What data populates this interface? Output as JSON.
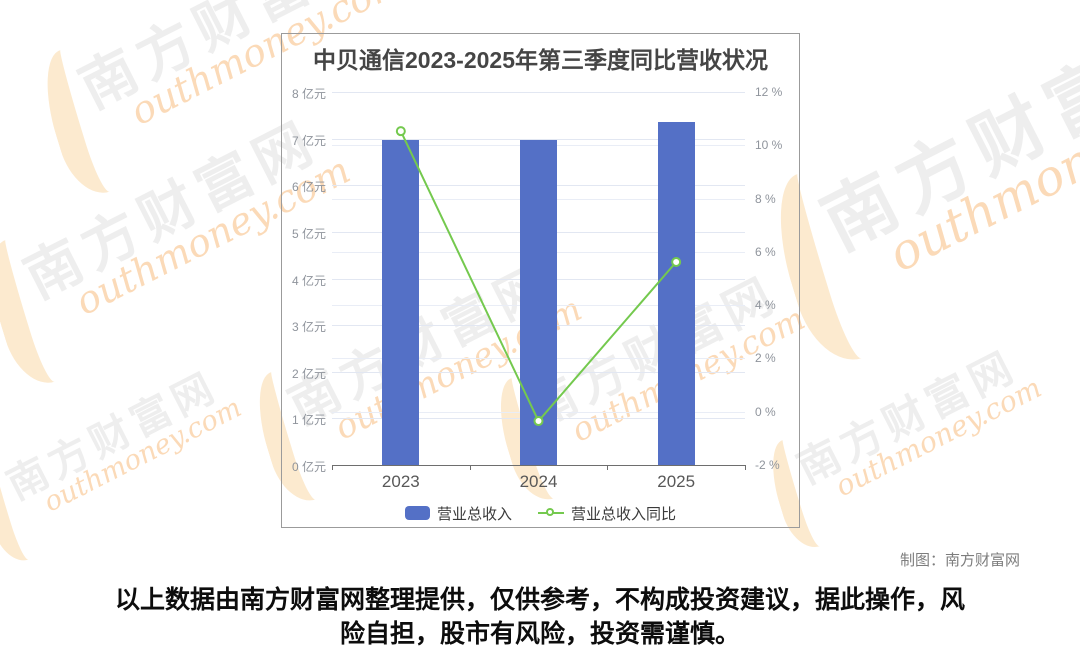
{
  "watermark": {
    "cn": "南方财富网",
    "en": "outhmoney.com"
  },
  "credit": "制图：南方财富网",
  "disclaimer": {
    "line1": "以上数据由南方财富网整理提供，仅供参考，不构成投资建议，据此操作，风",
    "line2": "险自担，股市有风险，投资需谨慎。"
  },
  "chart_data": {
    "type": "bar+line",
    "title": "中贝通信2023-2025年第三季度同比营收状况",
    "categories": [
      "2023",
      "2024",
      "2025"
    ],
    "series": [
      {
        "name": "营业总收入",
        "type": "bar",
        "axis": "left",
        "unit": "亿元",
        "color": "#5470c6",
        "values": [
          6.98,
          6.96,
          7.35
        ]
      },
      {
        "name": "营业总收入同比",
        "type": "line",
        "axis": "right",
        "unit": "%",
        "color": "#74c94e",
        "values": [
          10.53,
          -0.35,
          5.62
        ]
      }
    ],
    "left_axis": {
      "min": 0,
      "max": 8,
      "step": 1,
      "tick_labels": [
        "0 亿元",
        "1 亿元",
        "2 亿元",
        "3 亿元",
        "4 亿元",
        "5 亿元",
        "6 亿元",
        "7 亿元",
        "8 亿元"
      ]
    },
    "right_axis": {
      "min": -2,
      "max": 12,
      "step": 2,
      "tick_labels": [
        "-2 %",
        "0 %",
        "2 %",
        "4 %",
        "6 %",
        "8 %",
        "10 %",
        "12 %"
      ]
    },
    "grid": true,
    "legend_position": "bottom"
  }
}
